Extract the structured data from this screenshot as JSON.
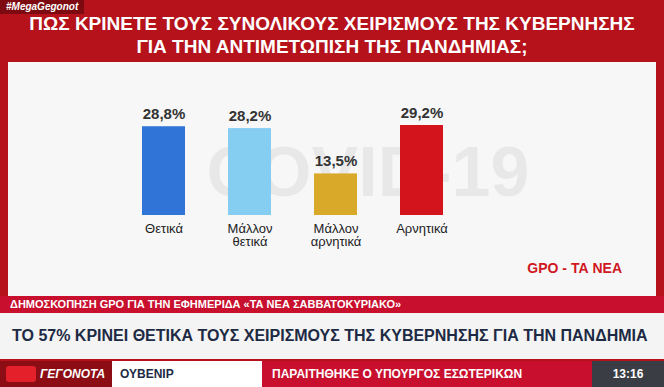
{
  "chart_data": {
    "type": "bar",
    "title": "ΠΩΣ ΚΡΙΝΕΤΕ ΤΟΥΣ ΣΥΝΟΛΙΚΟΥΣ ΧΕΙΡΙΣΜΟΥΣ ΤΗΣ ΚΥΒΕΡΝΗΣΗΣ ΓΙΑ ΤΗΝ ΑΝΤΙΜΕΤΩΠΙΣΗ ΤΗΣ ΠΑΝΔΗΜΙΑΣ;",
    "categories": [
      "Θετικά",
      "Μάλλον θετικά",
      "Μάλλον αρνητικά",
      "Αρνητικά"
    ],
    "values": [
      28.8,
      28.2,
      13.5,
      29.2
    ],
    "value_labels": [
      "28,8%",
      "28,2%",
      "13,5%",
      "29,2%"
    ],
    "colors": [
      "#2f74d6",
      "#86cdf2",
      "#d9aa2a",
      "#d3141c"
    ],
    "data_labels": true,
    "tick_labels": "x",
    "grid": false,
    "annotations": [
      "#MegaGegonot",
      "COVID-19",
      "GPO - ΤΑ ΝΕΑ",
      "ΔΗΜΟΣΚΟΠΗΣΗ GPO ΓΙΑ ΤΗΝ ΕΦΗΜΕΡΙΔΑ «ΤΑ ΝΕΑ ΣΑΒΒΑΤΟΚΥΡΙΑΚΟ»",
      "ΤΟ 57% ΚΡΙΝΕΙ ΘΕΤΙΚΑ ΤΟΥΣ ΧΕΙΡΙΣΜΟΥΣ ΤΗΣ ΚΥΒΕΡΝΗΣΗΣ ΓΙΑ ΤΗΝ ΠΑΝΔΗΜΙΑ",
      "ΓΕΓΟΝΟΤΑ",
      "ΟΥΒΕΝΙΡ",
      "ΠΑΡΑΙΤΗΘΗΚΕ Ο ΥΠΟΥΡΓΟΣ ΕΣΩΤΕΡΙΚΩΝ",
      "13:16"
    ]
  }
}
